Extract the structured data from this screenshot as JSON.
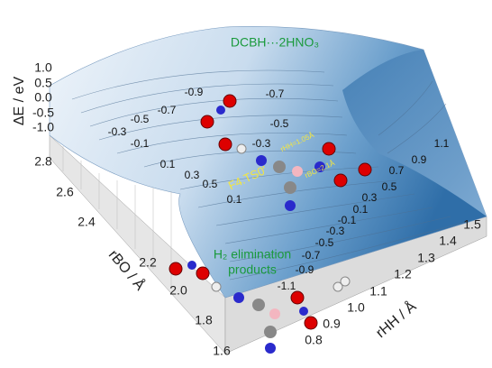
{
  "figure": {
    "title": "DCBH···2HNO₃",
    "z_axis": {
      "label": "ΔE / eV",
      "ticks": [
        "1.0",
        "0.5",
        "0.0",
        "-0.5",
        "-1.0"
      ]
    },
    "rbo_axis": {
      "label": "rBO / Å",
      "ticks": [
        "2.8",
        "2.6",
        "2.4",
        "2.2",
        "2.0",
        "1.8",
        "1.6"
      ]
    },
    "rhh_axis": {
      "label": "rHH / Å",
      "ticks": [
        "0.8",
        "0.9",
        "1.0",
        "1.1",
        "1.2",
        "1.3",
        "1.4",
        "1.5"
      ]
    },
    "contour_labels": [
      "-0.9",
      "-0.7",
      "-0.7",
      "-0.5",
      "-0.5",
      "-0.3",
      "-0.1",
      "-0.3",
      "0.1",
      "0.3",
      "0.5",
      "0.1",
      "1.1",
      "0.9",
      "0.7",
      "0.5",
      "0.3",
      "0.1",
      "-0.1",
      "-0.3",
      "-0.5",
      "-0.7",
      "-0.9",
      "-1.1"
    ],
    "ts_label": "F4.TS0'",
    "ts_rhh": "rHH=1.05Å",
    "ts_rbo": "rBO=2.1Å",
    "products": [
      "H₂ elimination",
      "products"
    ]
  }
}
